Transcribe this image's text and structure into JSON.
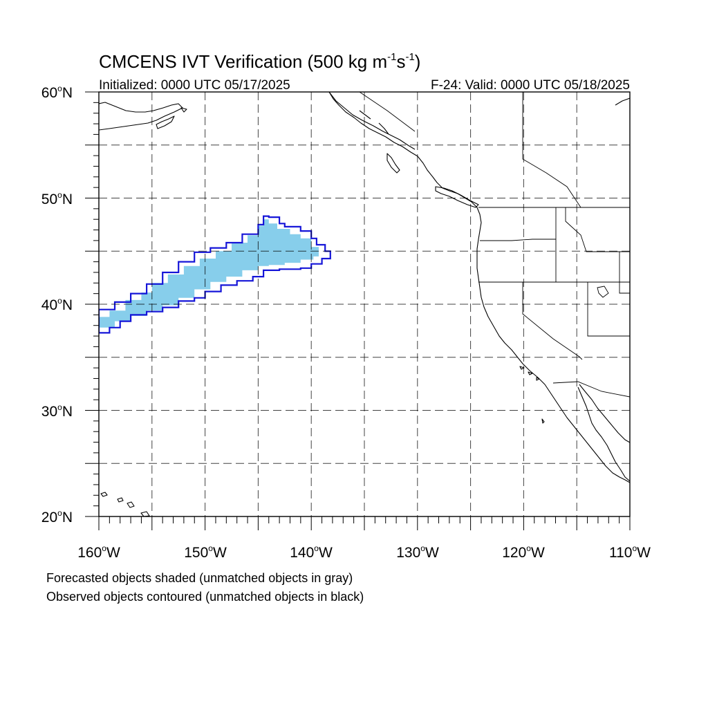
{
  "title": {
    "prefix": "CMCENS IVT Verification (500 kg m",
    "sup1": "-1",
    "mid": "s",
    "sup2": "-1",
    "suffix": ")"
  },
  "subtitle_left": "Initialized: 0000 UTC 05/17/2025",
  "subtitle_right": "F-24: Valid: 0000 UTC 05/18/2025",
  "map": {
    "lon_range": [
      -160,
      -110
    ],
    "lat_range": [
      20,
      60
    ],
    "lon_labels": [
      {
        "lon": -160,
        "text": "160"
      },
      {
        "lon": -150,
        "text": "150"
      },
      {
        "lon": -140,
        "text": "140"
      },
      {
        "lon": -130,
        "text": "130"
      },
      {
        "lon": -120,
        "text": "120"
      },
      {
        "lon": -110,
        "text": "110"
      }
    ],
    "lon_suffix": "W",
    "lat_labels": [
      {
        "lat": 60,
        "text": "60"
      },
      {
        "lat": 50,
        "text": "50"
      },
      {
        "lat": 40,
        "text": "40"
      },
      {
        "lat": 30,
        "text": "30"
      },
      {
        "lat": 20,
        "text": "20"
      }
    ],
    "lat_suffix": "N",
    "degree_symbol": "o",
    "gridlines": true,
    "forecast_fill_color": "#87ceeb",
    "observed_contour_color": "#1515d8"
  },
  "forecast_object": {
    "upper": [
      [
        -160,
        38.2
      ],
      [
        -159,
        38.8
      ],
      [
        -157.5,
        39.4
      ],
      [
        -156,
        40.4
      ],
      [
        -155,
        41.1
      ],
      [
        -153.5,
        42
      ],
      [
        -152,
        42.8
      ],
      [
        -150.5,
        43.6
      ],
      [
        -149,
        44.3
      ],
      [
        -147.5,
        45
      ],
      [
        -146,
        45.8
      ],
      [
        -145,
        46.5
      ],
      [
        -144.5,
        47.4
      ],
      [
        -144,
        48
      ],
      [
        -143.2,
        47.6
      ],
      [
        -142,
        47.1
      ],
      [
        -141,
        46.6
      ],
      [
        -140,
        46.2
      ],
      [
        -139.3,
        45.4
      ]
    ],
    "lower": [
      [
        -139.3,
        45.4
      ],
      [
        -139.8,
        44.5
      ],
      [
        -141,
        44.2
      ],
      [
        -142.5,
        43.9
      ],
      [
        -144,
        43.7
      ],
      [
        -145,
        43.6
      ],
      [
        -146.5,
        43.2
      ],
      [
        -148,
        42.6
      ],
      [
        -149.5,
        42.1
      ],
      [
        -151,
        41.4
      ],
      [
        -152.5,
        40.6
      ],
      [
        -154,
        39.9
      ],
      [
        -155.5,
        39.4
      ],
      [
        -157,
        38.9
      ],
      [
        -158.5,
        38.4
      ],
      [
        -160,
        37.8
      ]
    ]
  },
  "observed_object": {
    "upper": [
      [
        -160,
        38.5
      ],
      [
        -158.5,
        39.5
      ],
      [
        -157,
        40.2
      ],
      [
        -155.5,
        41
      ],
      [
        -154,
        41.9
      ],
      [
        -152.5,
        43
      ],
      [
        -151,
        44
      ],
      [
        -149.5,
        44.9
      ],
      [
        -148,
        45.3
      ],
      [
        -146.5,
        45.8
      ],
      [
        -145,
        46.6
      ],
      [
        -144.5,
        47.5
      ],
      [
        -144,
        48.3
      ],
      [
        -143,
        48.2
      ],
      [
        -142.5,
        47.6
      ],
      [
        -141,
        47.3
      ],
      [
        -140,
        46.9
      ],
      [
        -139.5,
        46.2
      ],
      [
        -138.7,
        45.6
      ],
      [
        -138.2,
        45
      ]
    ],
    "lower": [
      [
        -138.2,
        45
      ],
      [
        -139,
        44.3
      ],
      [
        -140,
        43.8
      ],
      [
        -141,
        43.4
      ],
      [
        -143,
        43.3
      ],
      [
        -144.5,
        43.2
      ],
      [
        -145.5,
        42.6
      ],
      [
        -147,
        42.2
      ],
      [
        -148.5,
        41.8
      ],
      [
        -150,
        41.2
      ],
      [
        -151,
        40.6
      ],
      [
        -152.5,
        40.3
      ],
      [
        -154,
        39.7
      ],
      [
        -155.5,
        39.3
      ],
      [
        -157,
        39
      ],
      [
        -158,
        38.4
      ],
      [
        -159,
        37.8
      ],
      [
        -160,
        37.3
      ]
    ]
  },
  "footnote_1": "Forecasted objects shaded (unmatched objects in gray)",
  "footnote_2": "Observed objects contoured (unmatched objects in black)"
}
